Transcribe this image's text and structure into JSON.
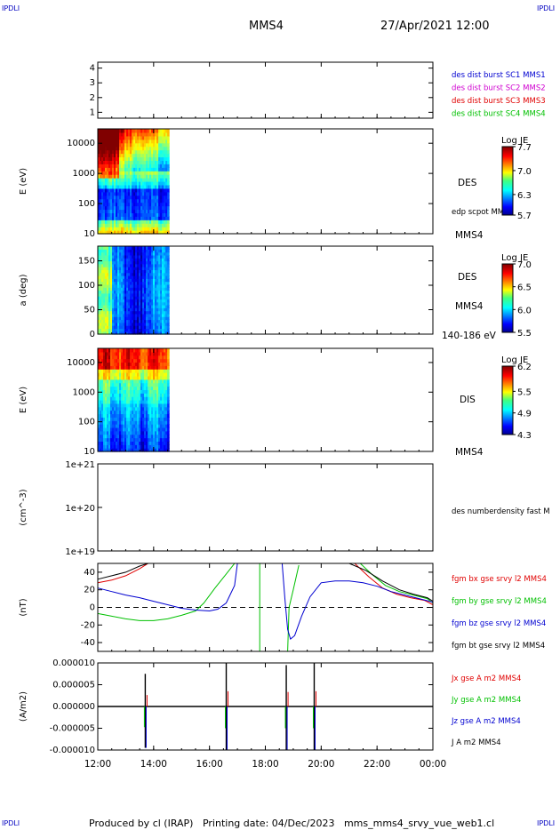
{
  "header": {
    "corner_tl": "IPDLI",
    "corner_tr": "IPDLI",
    "corner_bl": "IPDLI",
    "corner_br": "IPDLI",
    "spacecraft": "MMS4",
    "datetime": "27/Apr/2021 12:00"
  },
  "footer": {
    "text": "Produced by cl (IRAP)   Printing date: 04/Dec/2023   mms_mms4_srvy_vue_web1.cl"
  },
  "colors": {
    "blue": "#0000d0",
    "magenta": "#d000d0",
    "red": "#e00000",
    "green": "#00c000",
    "black": "#000000"
  },
  "time_axis": {
    "ticks": [
      "12:00",
      "14:00",
      "16:00",
      "18:00",
      "20:00",
      "22:00",
      "00:00"
    ],
    "range_hours": [
      12,
      24
    ],
    "data_end_hour": 14.55
  },
  "chart_data": [
    {
      "type": "line",
      "panel": "spacecraft",
      "ylim": [
        0.6,
        4.4
      ],
      "yticks": [
        "1",
        "2",
        "3",
        "4"
      ],
      "legend": [
        {
          "label": "des dist burst SC1 MMS1",
          "color": "#0000d0"
        },
        {
          "label": "des dist burst SC2 MMS2",
          "color": "#d000d0"
        },
        {
          "label": "des dist burst SC3 MMS3",
          "color": "#e00000"
        },
        {
          "label": "des dist burst SC4 MMS4",
          "color": "#00c000"
        }
      ]
    },
    {
      "type": "heatmap",
      "panel": "des-energy",
      "ylabel": "E (eV)",
      "yscale": "log",
      "ylim": [
        10,
        30000
      ],
      "yticks": [
        "10",
        "100",
        "1000",
        "10000"
      ],
      "label_right": "DES",
      "label_sub": "edp scpot MMS4",
      "label_bottom": "MMS4",
      "colorbar": {
        "title": "Log JE",
        "ticks": [
          "7.7",
          "7.0",
          "6.3",
          "5.7"
        ],
        "range": [
          5.7,
          7.7
        ]
      }
    },
    {
      "type": "heatmap",
      "panel": "des-pitch",
      "ylabel": "a (deg)",
      "ylim": [
        0,
        180
      ],
      "yticks": [
        "0",
        "50",
        "100",
        "150"
      ],
      "label_right": "DES",
      "label_sub": "MMS4",
      "label_bottom": "140-186 eV",
      "colorbar": {
        "title": "Log JE",
        "ticks": [
          "7.0",
          "6.5",
          "6.0",
          "5.5"
        ],
        "range": [
          5.5,
          7.0
        ]
      }
    },
    {
      "type": "heatmap",
      "panel": "dis-energy",
      "ylabel": "E (eV)",
      "yscale": "log",
      "ylim": [
        10,
        30000
      ],
      "yticks": [
        "10",
        "100",
        "1000",
        "10000"
      ],
      "label_right": "DIS",
      "label_bottom": "MMS4",
      "colorbar": {
        "title": "Log JE",
        "ticks": [
          "6.2",
          "5.5",
          "4.9",
          "4.3"
        ],
        "range": [
          4.3,
          6.2
        ]
      }
    },
    {
      "type": "line",
      "panel": "density",
      "ylabel": "(cm^-3)",
      "yscale": "log",
      "ylim": [
        1e+19,
        1e+21
      ],
      "yticks": [
        "1e+19",
        "1e+20",
        "1e+21"
      ],
      "legend": [
        {
          "label": "des numberdensity fast M",
          "color": "#000000"
        }
      ]
    },
    {
      "type": "line",
      "panel": "magnetic-field",
      "ylabel": "(nT)",
      "ylim": [
        -50,
        50
      ],
      "yticks": [
        "-40",
        "-20",
        "0",
        "20",
        "40"
      ],
      "legend": [
        {
          "label": "fgm bx gse srvy l2 MMS4",
          "color": "#e00000"
        },
        {
          "label": "fgm by gse srvy l2 MMS4",
          "color": "#00c000"
        },
        {
          "label": "fgm bz gse srvy l2 MMS4",
          "color": "#0000d0"
        },
        {
          "label": "fgm bt gse srvy l2 MMS4",
          "color": "#000000"
        }
      ],
      "series": [
        {
          "name": "fgm bx gse srvy l2 MMS4",
          "color": "#e00000",
          "segments": [
            [
              [
                12.0,
                28
              ],
              [
                12.5,
                31
              ],
              [
                13.0,
                36
              ],
              [
                13.5,
                44
              ],
              [
                13.8,
                50
              ]
            ],
            [
              [
                21.2,
                50
              ],
              [
                21.7,
                35
              ],
              [
                22.2,
                22
              ],
              [
                22.7,
                15
              ],
              [
                23.2,
                11
              ],
              [
                23.7,
                8
              ],
              [
                24.0,
                3
              ]
            ]
          ]
        },
        {
          "name": "fgm by gse srvy l2 MMS4",
          "color": "#00c000",
          "segments": [
            [
              [
                12.0,
                -7
              ],
              [
                12.5,
                -10
              ],
              [
                13.0,
                -13
              ],
              [
                13.5,
                -15
              ],
              [
                14.0,
                -15
              ],
              [
                14.5,
                -13
              ],
              [
                15.0,
                -9
              ],
              [
                15.5,
                -4
              ],
              [
                15.8,
                5
              ],
              [
                16.2,
                22
              ],
              [
                16.6,
                38
              ],
              [
                16.9,
                50
              ]
            ],
            [
              [
                17.8,
                50
              ],
              [
                17.8,
                -50
              ]
            ],
            [
              [
                18.8,
                -50
              ],
              [
                18.85,
                0
              ],
              [
                19.0,
                20
              ],
              [
                19.2,
                48
              ]
            ],
            [
              [
                21.4,
                50
              ],
              [
                21.8,
                38
              ],
              [
                22.3,
                25
              ],
              [
                22.8,
                18
              ],
              [
                23.3,
                14
              ],
              [
                23.8,
                10
              ],
              [
                24.0,
                5
              ]
            ]
          ]
        },
        {
          "name": "fgm bz gse srvy l2 MMS4",
          "color": "#0000d0",
          "segments": [
            [
              [
                12.0,
                22
              ],
              [
                12.5,
                18
              ],
              [
                13.0,
                14
              ],
              [
                13.5,
                11
              ],
              [
                14.0,
                7
              ],
              [
                14.5,
                3
              ],
              [
                15.0,
                -1
              ],
              [
                15.5,
                -3
              ],
              [
                16.0,
                -4
              ],
              [
                16.3,
                -2
              ],
              [
                16.6,
                5
              ],
              [
                16.9,
                25
              ],
              [
                17.0,
                50
              ]
            ],
            [
              [
                18.6,
                50
              ],
              [
                18.7,
                10
              ],
              [
                18.8,
                -25
              ],
              [
                18.9,
                -36
              ],
              [
                19.05,
                -32
              ],
              [
                19.3,
                -10
              ],
              [
                19.6,
                12
              ],
              [
                20.0,
                28
              ],
              [
                20.5,
                30
              ],
              [
                21.0,
                30
              ],
              [
                21.5,
                28
              ],
              [
                22.0,
                24
              ],
              [
                22.5,
                18
              ],
              [
                23.0,
                14
              ],
              [
                23.5,
                10
              ],
              [
                24.0,
                6
              ]
            ]
          ]
        },
        {
          "name": "fgm bt gse srvy l2 MMS4",
          "color": "#000000",
          "segments": [
            [
              [
                12.0,
                32
              ],
              [
                12.5,
                36
              ],
              [
                13.0,
                40
              ],
              [
                13.5,
                47
              ],
              [
                13.8,
                50
              ]
            ],
            [
              [
                21.0,
                50
              ],
              [
                21.6,
                42
              ],
              [
                22.2,
                30
              ],
              [
                22.8,
                20
              ],
              [
                23.3,
                15
              ],
              [
                23.8,
                11
              ],
              [
                24.0,
                7
              ]
            ]
          ]
        }
      ],
      "zero_line": true
    },
    {
      "type": "line",
      "panel": "current-density",
      "ylabel": "(A/m2)",
      "ylim": [
        -1e-05,
        1e-05
      ],
      "yticks": [
        "0.000010",
        "0.000005",
        "0.000000",
        "-0.000005",
        "-0.000010"
      ],
      "legend": [
        {
          "label": "Jx gse A m2 MMS4",
          "color": "#e00000"
        },
        {
          "label": "Jy gse A m2 MMS4",
          "color": "#00c000"
        },
        {
          "label": "Jz gse A m2 MMS4",
          "color": "#0000d0"
        },
        {
          "label": "J A m2 MMS4",
          "color": "#000000"
        }
      ],
      "spikes": [
        {
          "t": 13.7,
          "top": 7.5e-06,
          "bottom": -9.5e-06
        },
        {
          "t": 16.6,
          "top": 1e-05,
          "bottom": -1e-05
        },
        {
          "t": 18.75,
          "top": 9.5e-06,
          "bottom": -1e-05
        },
        {
          "t": 19.75,
          "top": 1e-05,
          "bottom": -1e-05
        }
      ]
    }
  ]
}
